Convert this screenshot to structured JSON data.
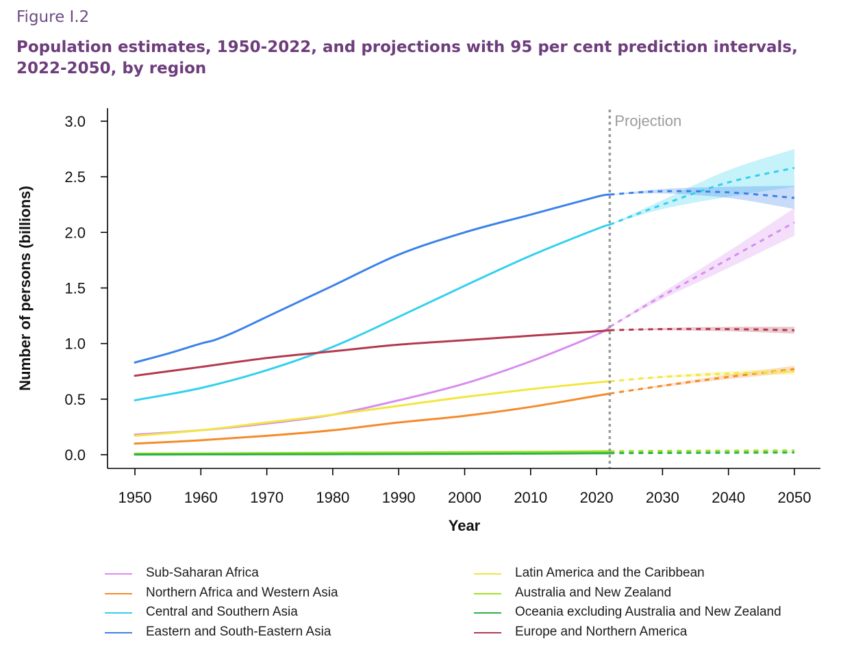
{
  "figure_label": "Figure I.2",
  "figure_title": "Population estimates, 1950-2022, and projections with 95 per cent prediction intervals, 2022-2050, by region",
  "colors": {
    "title": "#6d3d7c",
    "sub_saharan_africa": "#d98cf0",
    "northern_africa_western_asia": "#f58a2a",
    "central_southern_asia": "#33d0ee",
    "eastern_southeastern_asia": "#3b82ea",
    "latin_america_caribbean": "#f2e640",
    "australia_new_zealand": "#a0e020",
    "oceania_excl": "#2bb24a",
    "europe_northern_america": "#b3394e"
  },
  "chart_data": {
    "type": "line",
    "title": "",
    "xlabel": "Year",
    "ylabel": "Number of persons (billions)",
    "xlim": [
      1950,
      2050
    ],
    "ylim": [
      0,
      3.0
    ],
    "xticks": [
      "1950",
      "1960",
      "1970",
      "1980",
      "1990",
      "2000",
      "2010",
      "2020",
      "2030",
      "2040",
      "2050"
    ],
    "yticks": [
      "0.0",
      "0.5",
      "1.0",
      "1.5",
      "2.0",
      "2.5",
      "3.0"
    ],
    "projection_start": 2022,
    "projection_label": "Projection",
    "grid": false,
    "legend_position": "bottom",
    "series": [
      {
        "name": "Sub-Saharan Africa",
        "color": "#d98cf0",
        "estimates": {
          "x": [
            1950,
            1960,
            1970,
            1980,
            1990,
            2000,
            2010,
            2020,
            2022
          ],
          "y": [
            0.18,
            0.22,
            0.28,
            0.36,
            0.49,
            0.64,
            0.84,
            1.08,
            1.15
          ]
        },
        "projection": {
          "x": [
            2022,
            2030,
            2040,
            2050
          ],
          "y": [
            1.15,
            1.43,
            1.76,
            2.09
          ],
          "lower": [
            1.15,
            1.4,
            1.68,
            1.97
          ],
          "upper": [
            1.15,
            1.46,
            1.83,
            2.22
          ]
        }
      },
      {
        "name": "Northern Africa and Western Asia",
        "color": "#f58a2a",
        "estimates": {
          "x": [
            1950,
            1960,
            1970,
            1980,
            1990,
            2000,
            2010,
            2020,
            2022
          ],
          "y": [
            0.1,
            0.13,
            0.17,
            0.22,
            0.29,
            0.35,
            0.43,
            0.53,
            0.55
          ]
        },
        "projection": {
          "x": [
            2022,
            2030,
            2040,
            2050
          ],
          "y": [
            0.55,
            0.62,
            0.7,
            0.77
          ],
          "lower": [
            0.55,
            0.61,
            0.68,
            0.74
          ],
          "upper": [
            0.55,
            0.63,
            0.72,
            0.8
          ]
        }
      },
      {
        "name": "Central and Southern Asia",
        "color": "#33d0ee",
        "estimates": {
          "x": [
            1950,
            1960,
            1970,
            1980,
            1990,
            2000,
            2010,
            2020,
            2022
          ],
          "y": [
            0.49,
            0.6,
            0.76,
            0.97,
            1.24,
            1.52,
            1.79,
            2.03,
            2.07
          ]
        },
        "projection": {
          "x": [
            2022,
            2030,
            2040,
            2050
          ],
          "y": [
            2.07,
            2.25,
            2.45,
            2.58
          ],
          "lower": [
            2.07,
            2.21,
            2.32,
            2.41
          ],
          "upper": [
            2.07,
            2.29,
            2.56,
            2.75
          ]
        }
      },
      {
        "name": "Eastern and South-Eastern Asia",
        "color": "#3b82ea",
        "estimates": {
          "x": [
            1950,
            1955,
            1960,
            1962,
            1965,
            1970,
            1980,
            1990,
            2000,
            2010,
            2020,
            2022
          ],
          "y": [
            0.83,
            0.91,
            1.0,
            1.03,
            1.1,
            1.24,
            1.52,
            1.8,
            2.0,
            2.16,
            2.32,
            2.34
          ]
        },
        "projection": {
          "x": [
            2022,
            2030,
            2040,
            2050
          ],
          "y": [
            2.34,
            2.37,
            2.36,
            2.31
          ],
          "lower": [
            2.34,
            2.35,
            2.31,
            2.21
          ],
          "upper": [
            2.34,
            2.39,
            2.41,
            2.42
          ]
        }
      },
      {
        "name": "Latin America and the Caribbean",
        "color": "#f2e640",
        "estimates": {
          "x": [
            1950,
            1960,
            1970,
            1980,
            1990,
            2000,
            2010,
            2020,
            2022
          ],
          "y": [
            0.17,
            0.22,
            0.29,
            0.36,
            0.44,
            0.52,
            0.59,
            0.65,
            0.66
          ]
        },
        "projection": {
          "x": [
            2022,
            2030,
            2040,
            2050
          ],
          "y": [
            0.66,
            0.7,
            0.73,
            0.75
          ],
          "lower": [
            0.66,
            0.69,
            0.71,
            0.72
          ],
          "upper": [
            0.66,
            0.71,
            0.75,
            0.78
          ]
        }
      },
      {
        "name": "Australia and New Zealand",
        "color": "#a0e020",
        "estimates": {
          "x": [
            1950,
            1960,
            1970,
            1980,
            1990,
            2000,
            2010,
            2020,
            2022
          ],
          "y": [
            0.01,
            0.012,
            0.015,
            0.018,
            0.02,
            0.023,
            0.026,
            0.03,
            0.031
          ]
        },
        "projection": {
          "x": [
            2022,
            2030,
            2040,
            2050
          ],
          "y": [
            0.031,
            0.034,
            0.036,
            0.038
          ],
          "lower": [
            0.031,
            0.033,
            0.034,
            0.035
          ],
          "upper": [
            0.031,
            0.035,
            0.038,
            0.041
          ]
        }
      },
      {
        "name": "Oceania excluding Australia and New Zealand",
        "color": "#2bb24a",
        "estimates": {
          "x": [
            1950,
            1960,
            1970,
            1980,
            1990,
            2000,
            2010,
            2020,
            2022
          ],
          "y": [
            0.002,
            0.003,
            0.004,
            0.005,
            0.006,
            0.008,
            0.01,
            0.013,
            0.014
          ]
        },
        "projection": {
          "x": [
            2022,
            2030,
            2040,
            2050
          ],
          "y": [
            0.014,
            0.016,
            0.018,
            0.02
          ],
          "lower": [
            0.014,
            0.015,
            0.017,
            0.018
          ],
          "upper": [
            0.014,
            0.017,
            0.019,
            0.022
          ]
        }
      },
      {
        "name": "Europe and Northern America",
        "color": "#b3394e",
        "estimates": {
          "x": [
            1950,
            1960,
            1970,
            1980,
            1990,
            2000,
            2010,
            2020,
            2022
          ],
          "y": [
            0.71,
            0.79,
            0.87,
            0.93,
            0.99,
            1.03,
            1.07,
            1.11,
            1.12
          ]
        },
        "projection": {
          "x": [
            2022,
            2030,
            2040,
            2050
          ],
          "y": [
            1.12,
            1.13,
            1.13,
            1.12
          ],
          "lower": [
            1.12,
            1.12,
            1.11,
            1.09
          ],
          "upper": [
            1.12,
            1.14,
            1.15,
            1.15
          ]
        }
      }
    ]
  }
}
